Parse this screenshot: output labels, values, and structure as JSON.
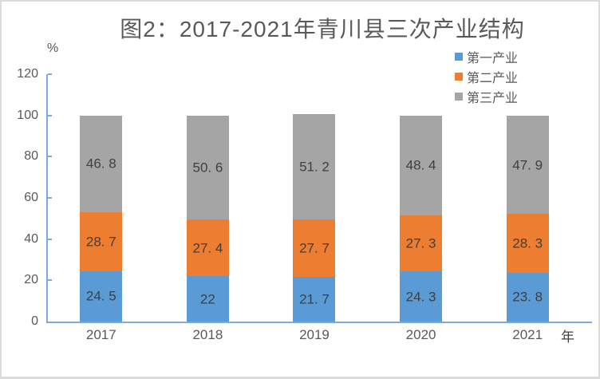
{
  "title": "图2：2017-2021年青川县三次产业结构",
  "axes": {
    "y_unit": "%",
    "x_unit": "年",
    "y_ticks": [
      0,
      20,
      40,
      60,
      80,
      100,
      120
    ]
  },
  "colors": {
    "axis_line": "#7fa8dc",
    "tick_label": "#595959",
    "data_label": "#3f3f3f",
    "title": "#595959",
    "frame_border": "#dbdbdb"
  },
  "chart_data": {
    "type": "bar",
    "stacked": true,
    "title": "图2：2017-2021年青川县三次产业结构",
    "xlabel": "年",
    "ylabel": "%",
    "ylim": [
      0,
      120
    ],
    "grid": false,
    "legend_position": "top-right",
    "categories": [
      "2017",
      "2018",
      "2019",
      "2020",
      "2021"
    ],
    "series": [
      {
        "key": "primary-industry",
        "name": "第一产业",
        "color": "#5B9BD5",
        "values": [
          24.5,
          22,
          21.7,
          24.3,
          23.8
        ],
        "labels": [
          "24. 5",
          "22",
          "21. 7",
          "24. 3",
          "23. 8"
        ]
      },
      {
        "key": "secondary-industry",
        "name": "第二产业",
        "color": "#ED7D31",
        "values": [
          28.7,
          27.4,
          27.7,
          27.3,
          28.3
        ],
        "labels": [
          "28. 7",
          "27. 4",
          "27. 7",
          "27. 3",
          "28. 3"
        ]
      },
      {
        "key": "tertiary-industry",
        "name": "第三产业",
        "color": "#A5A5A5",
        "values": [
          46.8,
          50.6,
          51.2,
          48.4,
          47.9
        ],
        "labels": [
          "46. 8",
          "50. 6",
          "51. 2",
          "48. 4",
          "47. 9"
        ]
      }
    ]
  }
}
